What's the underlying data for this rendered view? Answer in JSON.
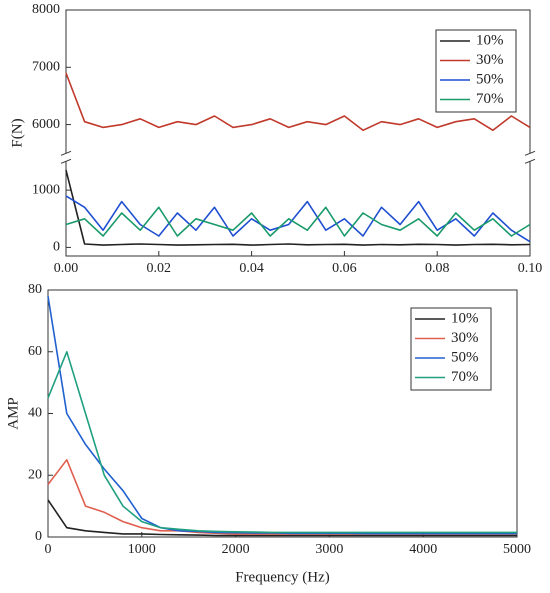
{
  "chart_data": [
    {
      "type": "line",
      "ylabel": "F(N)",
      "x": [
        0,
        0.004,
        0.008,
        0.012,
        0.016,
        0.02,
        0.024,
        0.028,
        0.032,
        0.036,
        0.04,
        0.044,
        0.048,
        0.052,
        0.056,
        0.06,
        0.064,
        0.068,
        0.072,
        0.076,
        0.08,
        0.084,
        0.088,
        0.092,
        0.096,
        0.1
      ],
      "series": [
        {
          "name": "10%",
          "color": "#222222",
          "values": [
            1350,
            60,
            40,
            50,
            60,
            50,
            40,
            45,
            50,
            55,
            40,
            50,
            60,
            45,
            50,
            55,
            40,
            50,
            45,
            55,
            50,
            40,
            50,
            55,
            45,
            50
          ]
        },
        {
          "name": "30%",
          "color": "#c0392b",
          "values": [
            6900,
            6050,
            5950,
            6000,
            6100,
            5950,
            6050,
            6000,
            6150,
            5950,
            6000,
            6100,
            5950,
            6050,
            6000,
            6150,
            5900,
            6050,
            6000,
            6100,
            5950,
            6050,
            6100,
            5900,
            6150,
            5950
          ]
        },
        {
          "name": "50%",
          "color": "#1f4fd0",
          "values": [
            900,
            700,
            300,
            800,
            400,
            200,
            600,
            300,
            700,
            200,
            500,
            300,
            400,
            800,
            300,
            500,
            200,
            700,
            400,
            800,
            300,
            500,
            200,
            600,
            300,
            100
          ]
        },
        {
          "name": "70%",
          "color": "#1a9a6a",
          "values": [
            400,
            500,
            200,
            600,
            300,
            700,
            200,
            500,
            400,
            300,
            600,
            200,
            500,
            300,
            700,
            200,
            600,
            400,
            300,
            500,
            200,
            600,
            300,
            500,
            200,
            400
          ]
        }
      ],
      "xlim": [
        0,
        0.1
      ],
      "xticks": [
        {
          "value": 0,
          "label": "0.00"
        },
        {
          "value": 0.02,
          "label": "0.02"
        },
        {
          "value": 0.04,
          "label": "0.04"
        },
        {
          "value": 0.06,
          "label": "0.06"
        },
        {
          "value": 0.08,
          "label": "0.08"
        },
        {
          "value": 0.1,
          "label": "0.10"
        }
      ],
      "ylim": [
        -150,
        8000
      ],
      "y_break": [
        1450,
        5550
      ],
      "yticks": [
        0,
        1000,
        6000,
        7000,
        8000
      ],
      "legend": "upper right"
    },
    {
      "type": "line",
      "xlabel": "Frequency (Hz)",
      "ylabel": "AMP",
      "x": [
        0,
        200,
        400,
        600,
        800,
        1000,
        1200,
        1400,
        1600,
        1800,
        2000,
        2200,
        2400,
        2600,
        2800,
        3000,
        3200,
        3400,
        3600,
        3800,
        4000,
        4200,
        4400,
        4600,
        4800,
        5000
      ],
      "series": [
        {
          "name": "10%",
          "color": "#222222",
          "values": [
            12,
            3,
            2,
            1.5,
            1,
            1,
            0.8,
            0.7,
            0.6,
            0.5,
            0.5,
            0.5,
            0.5,
            0.5,
            0.5,
            0.5,
            0.5,
            0.5,
            0.5,
            0.5,
            0.5,
            0.5,
            0.5,
            0.5,
            0.5,
            0.5
          ]
        },
        {
          "name": "30%",
          "color": "#e06050",
          "values": [
            17,
            25,
            10,
            8,
            5,
            3,
            2,
            2,
            1.5,
            1.2,
            1,
            1,
            1,
            1,
            1,
            1,
            1,
            1,
            1,
            1,
            1,
            1,
            1,
            1,
            1,
            1
          ]
        },
        {
          "name": "50%",
          "color": "#2060d0",
          "values": [
            78,
            40,
            30,
            22,
            15,
            6,
            3,
            2,
            1.8,
            1.5,
            1.4,
            1.3,
            1.3,
            1.2,
            1.2,
            1.2,
            1.2,
            1.1,
            1.1,
            1.1,
            1.1,
            1.1,
            1.1,
            1.1,
            1.1,
            1.1
          ]
        },
        {
          "name": "70%",
          "color": "#20a080",
          "values": [
            45,
            60,
            40,
            20,
            10,
            5,
            3,
            2.5,
            2,
            1.8,
            1.7,
            1.6,
            1.5,
            1.5,
            1.5,
            1.5,
            1.5,
            1.5,
            1.5,
            1.5,
            1.5,
            1.5,
            1.5,
            1.5,
            1.5,
            1.5
          ]
        }
      ],
      "xlim": [
        0,
        5000
      ],
      "xticks": [
        0,
        1000,
        2000,
        3000,
        4000,
        5000
      ],
      "ylim": [
        0,
        80
      ],
      "yticks": [
        0,
        20,
        40,
        60,
        80
      ],
      "legend": "upper right"
    }
  ]
}
